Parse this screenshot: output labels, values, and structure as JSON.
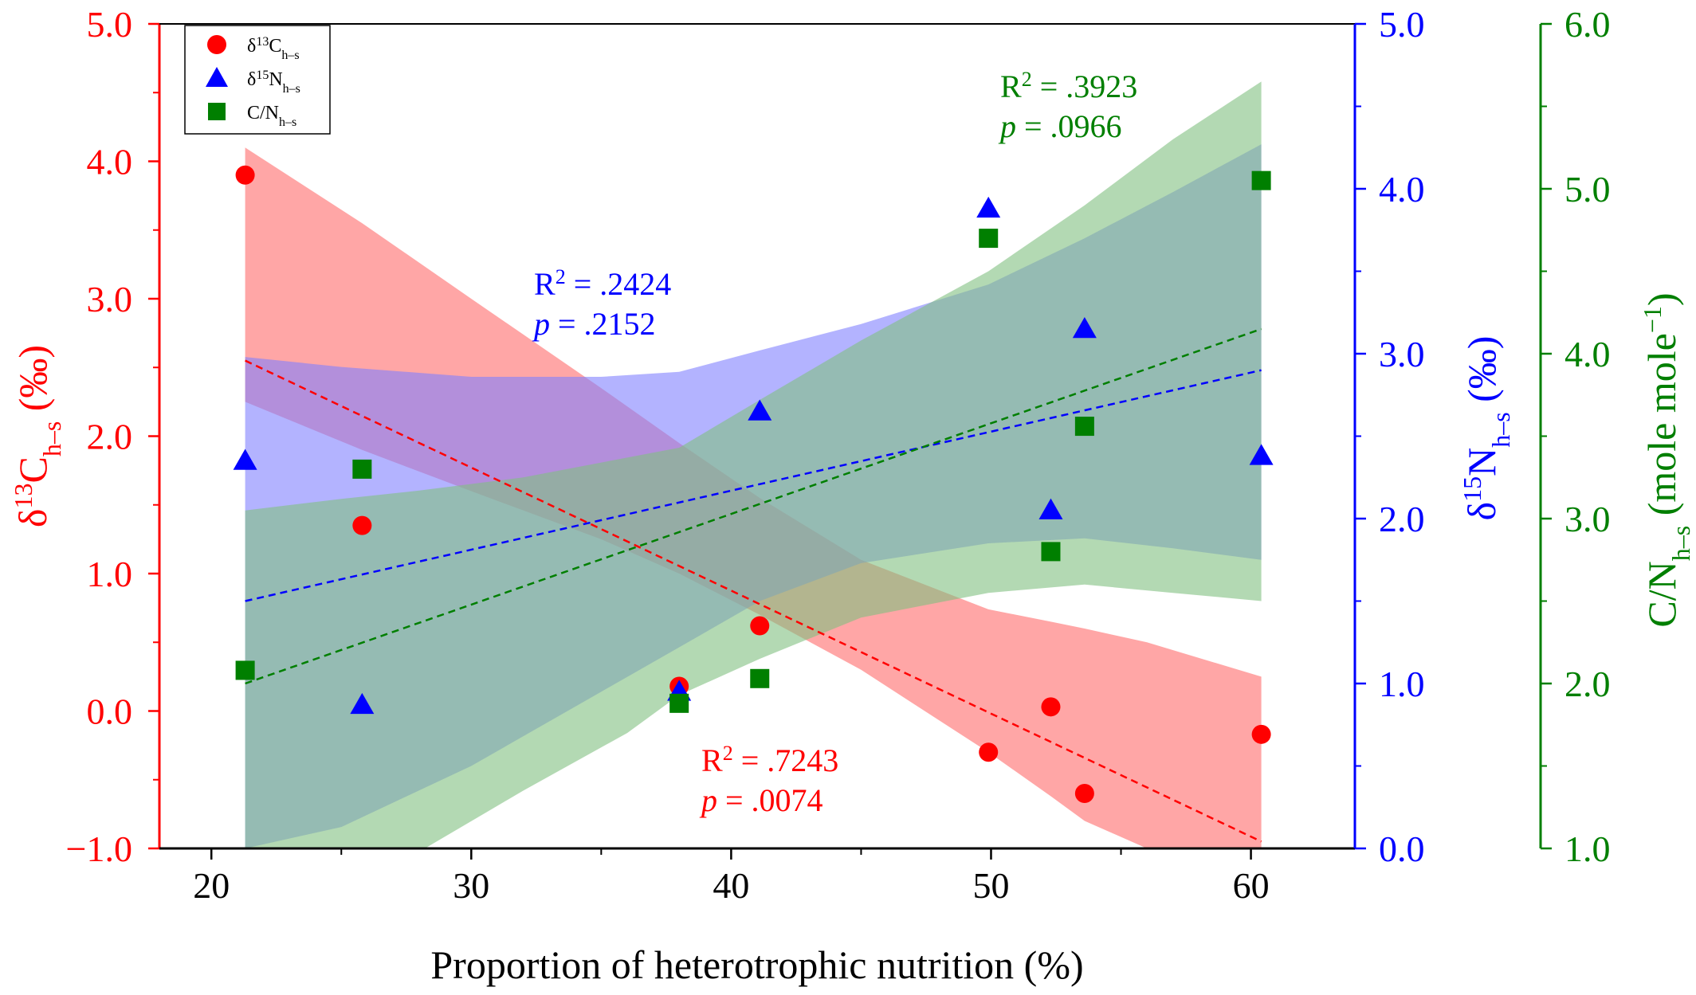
{
  "chart_data": {
    "type": "scatter",
    "xlabel": "Proportion of heterotrophic nutrition (%)",
    "x_ticks": [
      "20",
      "30",
      "40",
      "50",
      "60"
    ],
    "xlim": [
      18,
      64
    ],
    "axes": {
      "left": {
        "label_main": "δ",
        "label_sup": "13",
        "label_elem": "C",
        "label_sub": "h–s",
        "label_unit": " (‰)",
        "color": "#ff0000",
        "ylim": [
          -1.0,
          5.0
        ],
        "ticks": [
          "-1.0",
          "0.0",
          "1.0",
          "2.0",
          "3.0",
          "4.0",
          "5.0"
        ]
      },
      "right1": {
        "label_main": "δ",
        "label_sup": "15",
        "label_elem": "N",
        "label_sub": "h–s",
        "label_unit": " (‰)",
        "color": "#0000ff",
        "ylim": [
          0.0,
          5.0
        ],
        "ticks": [
          "0.0",
          "1.0",
          "2.0",
          "3.0",
          "4.0",
          "5.0"
        ]
      },
      "right2": {
        "label_main": "C/N",
        "label_sub": "h–s",
        "label_unit": " (mole mole",
        "label_sup": "−1",
        "label_close": ")",
        "color": "#007f00",
        "ylim": [
          1.0,
          6.0
        ],
        "ticks": [
          "1.0",
          "2.0",
          "3.0",
          "4.0",
          "5.0",
          "6.0"
        ]
      }
    },
    "series": [
      {
        "name": "δ13C h–s",
        "legend_main": "δ",
        "legend_sup": "13",
        "legend_elem": "C",
        "legend_sub": "h–s",
        "axis": "left",
        "marker": "circle",
        "color": "#ff0000",
        "band_color": "#ff6a6a",
        "x": [
          21.3,
          25.8,
          38.0,
          41.1,
          49.9,
          52.3,
          53.6,
          60.4
        ],
        "y": [
          3.9,
          1.35,
          0.18,
          0.62,
          -0.3,
          0.03,
          -0.6,
          -0.17
        ],
        "fit": {
          "x": [
            21.3,
            60.4
          ],
          "y": [
            2.55,
            -0.95
          ]
        },
        "band": {
          "x": [
            21.3,
            25.8,
            30,
            35,
            38.0,
            41.1,
            45,
            49.9,
            52.3,
            53.6,
            56,
            60.4
          ],
          "lower": [
            2.25,
            1.9,
            1.6,
            1.25,
            1.0,
            0.7,
            0.3,
            -0.3,
            -0.62,
            -0.8,
            -1.0,
            -1.0
          ],
          "upper": [
            4.1,
            3.55,
            3.0,
            2.35,
            1.95,
            1.55,
            1.1,
            0.74,
            0.65,
            0.6,
            0.5,
            0.25
          ]
        },
        "annotation": {
          "r2_label": "R",
          "r2_sup": "2",
          "r2_value": " = .7243",
          "p_label": "p",
          "p_value": " = .0074"
        }
      },
      {
        "name": "δ15N h–s",
        "legend_main": "δ",
        "legend_sup": "15",
        "legend_elem": "N",
        "legend_sub": "h–s",
        "axis": "right1",
        "marker": "triangle",
        "color": "#0000ff",
        "band_color": "#8080ff",
        "x": [
          21.3,
          25.8,
          38.0,
          41.1,
          49.9,
          52.3,
          53.6,
          60.4
        ],
        "y": [
          2.35,
          0.87,
          0.95,
          2.65,
          3.88,
          2.05,
          3.15,
          2.38
        ],
        "fit": {
          "x": [
            21.3,
            60.4
          ],
          "y": [
            1.5,
            2.9
          ]
        },
        "band": {
          "x": [
            21.3,
            25,
            30,
            35,
            38.0,
            41.1,
            45,
            49.9,
            53.6,
            57,
            60.4
          ],
          "lower": [
            0.0,
            0.13,
            0.5,
            0.95,
            1.22,
            1.5,
            1.73,
            1.85,
            1.88,
            1.82,
            1.75
          ],
          "upper": [
            2.98,
            2.92,
            2.86,
            2.86,
            2.89,
            3.02,
            3.18,
            3.42,
            3.7,
            3.98,
            4.27
          ]
        },
        "annotation": {
          "r2_label": "R",
          "r2_sup": "2",
          "r2_value": " = .2424",
          "p_label": "p",
          "p_value": " = .2152"
        }
      },
      {
        "name": "C/N h–s",
        "legend_main": "C/N",
        "legend_sub": "h–s",
        "axis": "right2",
        "marker": "square",
        "color": "#007f00",
        "band_color": "#80c080",
        "x": [
          21.3,
          25.8,
          38.0,
          41.1,
          49.9,
          52.3,
          53.6,
          60.4
        ],
        "y": [
          2.08,
          3.3,
          1.88,
          2.03,
          4.7,
          2.8,
          3.56,
          5.05
        ],
        "fit": {
          "x": [
            21.3,
            60.4
          ],
          "y": [
            2.0,
            4.15
          ]
        },
        "band": {
          "x": [
            21.3,
            25,
            28,
            32,
            36,
            38.0,
            41.1,
            45,
            49.9,
            53.6,
            57,
            60.4
          ],
          "lower": [
            0.4,
            0.72,
            0.98,
            1.35,
            1.7,
            1.93,
            2.15,
            2.4,
            2.55,
            2.6,
            2.55,
            2.5
          ],
          "upper": [
            3.05,
            3.12,
            3.17,
            3.25,
            3.37,
            3.43,
            3.72,
            4.08,
            4.5,
            4.9,
            5.3,
            5.65
          ]
        },
        "annotation": {
          "r2_label": "R",
          "r2_sup": "2",
          "r2_value": " = .3923",
          "p_label": "p",
          "p_value": " = .0966"
        }
      }
    ],
    "legend_position": "top-left",
    "grid": false
  }
}
